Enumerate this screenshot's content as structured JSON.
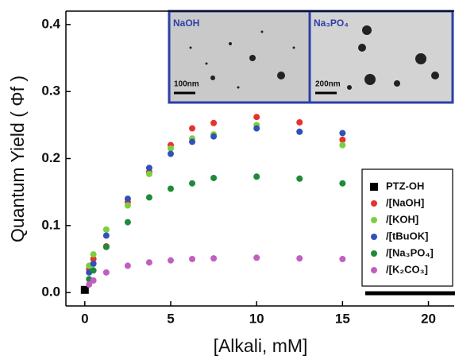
{
  "chart_data": {
    "type": "scatter",
    "xlabel": "[Alkali, mM]",
    "ylabel": "Quantum Yield ( Φf )",
    "xlim": [
      -1.1,
      21.5
    ],
    "ylim": [
      -0.02,
      0.42
    ],
    "xticks": [
      0,
      5,
      10,
      15,
      20
    ],
    "yticks": [
      {
        "value": 0,
        "label": "0.0"
      },
      0.1,
      0.2,
      0.3,
      0.4
    ],
    "legend": "lower right",
    "series": [
      {
        "name": "PTZ-OH",
        "color": "#000000",
        "marker": "square",
        "x": [
          0
        ],
        "values": [
          0.004
        ]
      },
      {
        "name": "/[NaOH]",
        "color": "#e8312a",
        "marker": "circle",
        "x": [
          0.25,
          0.5,
          1.25,
          2.5,
          3.75,
          5,
          6.25,
          7.5,
          10,
          12.5,
          15
        ],
        "values": [
          0.035,
          0.05,
          0.069,
          0.135,
          0.18,
          0.22,
          0.245,
          0.253,
          0.262,
          0.254,
          0.228
        ]
      },
      {
        "name": "/[KOH]",
        "color": "#7ccf3c",
        "marker": "circle",
        "x": [
          0.25,
          0.5,
          1.25,
          2.5,
          3.75,
          5,
          6.25,
          7.5,
          10,
          12.5,
          15
        ],
        "values": [
          0.04,
          0.057,
          0.094,
          0.13,
          0.177,
          0.215,
          0.23,
          0.236,
          0.25,
          0.24,
          0.22
        ]
      },
      {
        "name": "/[tBuOK]",
        "color": "#2f52b8",
        "marker": "circle",
        "x": [
          0.25,
          0.5,
          1.25,
          2.5,
          3.75,
          5,
          6.25,
          7.5,
          10,
          12.5,
          15
        ],
        "values": [
          0.03,
          0.043,
          0.085,
          0.14,
          0.186,
          0.207,
          0.225,
          0.233,
          0.245,
          0.24,
          0.238
        ]
      },
      {
        "name": "/[Na₃PO₄]",
        "color": "#1e8a3a",
        "marker": "circle",
        "x": [
          0.25,
          0.5,
          1.25,
          2.5,
          3.75,
          5,
          6.25,
          7.5,
          10,
          12.5,
          15
        ],
        "values": [
          0.02,
          0.033,
          0.068,
          0.105,
          0.142,
          0.155,
          0.163,
          0.171,
          0.173,
          0.17,
          0.163
        ]
      },
      {
        "name": "/[K₂CO₃]",
        "color": "#c15fc0",
        "marker": "circle",
        "x": [
          0.25,
          0.5,
          1.25,
          2.5,
          3.75,
          5,
          6.25,
          7.5,
          10,
          12.5,
          15
        ],
        "values": [
          0.012,
          0.018,
          0.03,
          0.04,
          0.045,
          0.048,
          0.05,
          0.051,
          0.052,
          0.051,
          0.05
        ]
      }
    ],
    "insets": [
      {
        "label": "NaOH",
        "scale_bar": "100nm"
      },
      {
        "label": "Na₃PO₄",
        "scale_bar": "200nm"
      }
    ]
  }
}
